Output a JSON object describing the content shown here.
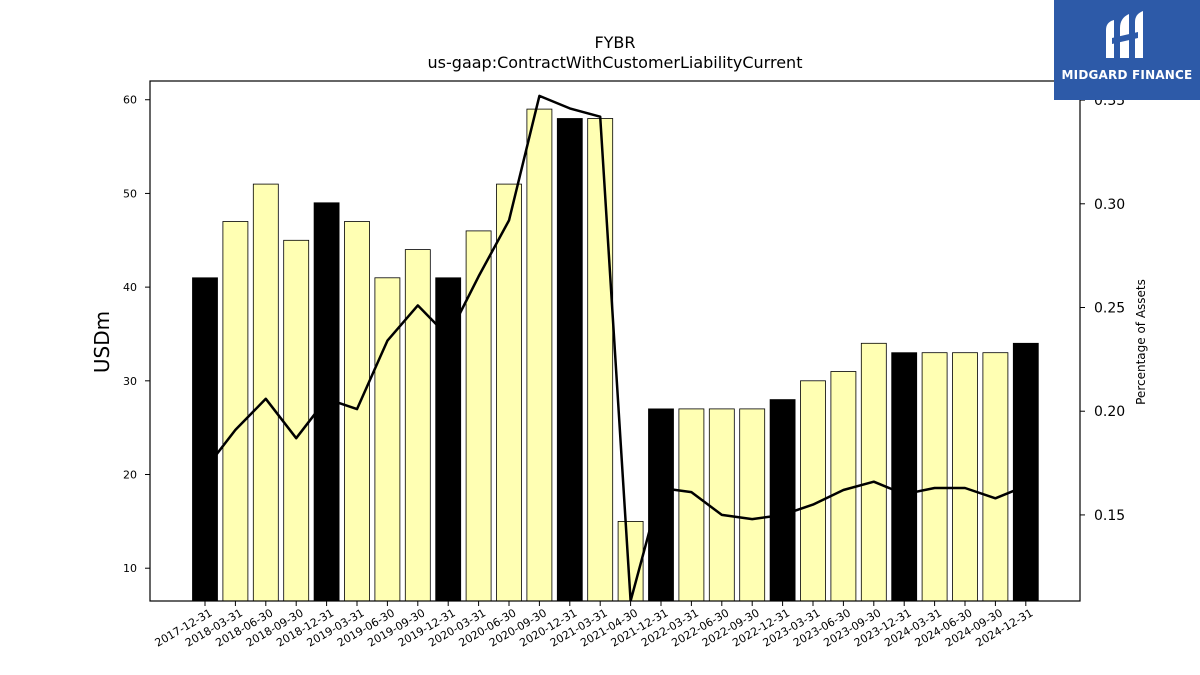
{
  "logo": {
    "name": "MIDGARD FINANCE",
    "icon": "midgard-logo-icon",
    "bg": "#2d5aa8"
  },
  "chart_data": {
    "type": "bar",
    "title": "FYBR",
    "subtitle": "us-gaap:ContractWithCustomerLiabilityCurrent",
    "ylabel": "USDm",
    "y2label": "Percentage of Assets",
    "ylim": [
      6.5,
      62
    ],
    "y2lim": [
      0.1085,
      0.3592
    ],
    "yticks": [
      10,
      20,
      30,
      40,
      50,
      60
    ],
    "y2ticks": [
      0.15,
      0.2,
      0.25,
      0.3,
      0.35
    ],
    "y2tick_labels": [
      "0.15",
      "0.20",
      "0.25",
      "0.30",
      "0.35"
    ],
    "colors": {
      "q4_bar": "#000000",
      "other_bar": "#ffffb3",
      "line": "#000000"
    },
    "categories": [
      "2017-12-31",
      "2018-03-31",
      "2018-06-30",
      "2018-09-30",
      "2018-12-31",
      "2019-03-31",
      "2019-06-30",
      "2019-09-30",
      "2019-12-31",
      "2020-03-31",
      "2020-06-30",
      "2020-09-30",
      "2020-12-31",
      "2021-03-31",
      "2021-04-30",
      "2021-12-31",
      "2022-03-31",
      "2022-06-30",
      "2022-09-30",
      "2022-12-31",
      "2023-03-31",
      "2023-06-30",
      "2023-09-30",
      "2023-12-31",
      "2024-03-31",
      "2024-06-30",
      "2024-09-30",
      "2024-12-31"
    ],
    "bar_tick_labels": [
      "2017-12-31",
      "2018-03-31",
      "2018-06-30",
      "2018-09-30",
      "2018-12-31",
      "2019-03-31",
      "2019-06-30",
      "2019-09-30",
      "2019-12-31",
      "2020-03-31",
      "2020-06-30",
      "2020-09-30",
      "2020-12-31",
      "2021-03-31",
      "2021-04-30",
      "2021-12-31",
      "2022-03-31",
      "2022-06-30",
      "2022-09-30",
      "2022-12-31",
      "2023-03-31",
      "2023-06-30",
      "2023-09-30",
      "2023-12-31",
      "2024-03-31",
      "2024-06-30",
      "2024-09-30",
      "2024-12-31"
    ],
    "series": [
      {
        "values": [
          41,
          47,
          51,
          45,
          49,
          47,
          41,
          44,
          41,
          46,
          51,
          59,
          58,
          58,
          15,
          27,
          27,
          27,
          27,
          28,
          30,
          31,
          34,
          33,
          33,
          33,
          33,
          34
        ]
      },
      {
        "axis": "right",
        "type": "line",
        "values": [
          0.172,
          0.191,
          0.206,
          0.187,
          0.206,
          0.201,
          0.234,
          0.251,
          0.236,
          0.265,
          0.292,
          0.352,
          0.346,
          0.342,
          null,
          0.163,
          0.161,
          0.15,
          0.148,
          0.15,
          0.155,
          0.162,
          0.166,
          0.16,
          0.163,
          0.163,
          0.158,
          0.164
        ]
      }
    ],
    "q4_flags": [
      true,
      false,
      false,
      false,
      true,
      false,
      false,
      false,
      true,
      false,
      false,
      false,
      true,
      false,
      false,
      true,
      false,
      false,
      false,
      true,
      false,
      false,
      false,
      true,
      false,
      false,
      false,
      true
    ],
    "grid": false
  }
}
